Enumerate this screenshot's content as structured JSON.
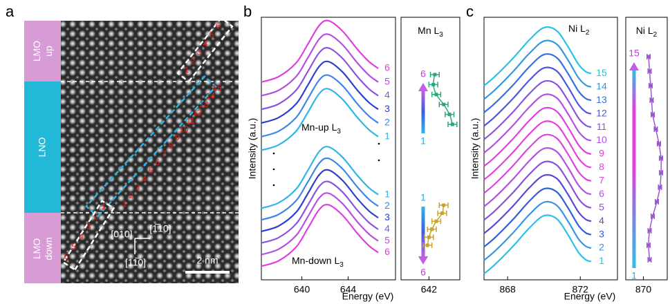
{
  "panel_labels": [
    "a",
    "b",
    "c"
  ],
  "panel_a": {
    "lmo_up": [
      "LMO",
      "up"
    ],
    "lno": "LNO",
    "lmo_down": [
      "LMO",
      "down"
    ],
    "directions": [
      "[010]",
      "[1̅10]",
      "[11̅0]"
    ],
    "scale_bar": "2 nm",
    "up_numbers": [
      "1",
      "2",
      "3",
      "4",
      "5",
      "6"
    ],
    "lno_numbers": [
      "1",
      "2",
      "3",
      "4",
      "5",
      "6",
      "7",
      "8",
      "9",
      "10",
      "11",
      "12",
      "13",
      "14",
      "15"
    ],
    "down_numbers": [
      "1",
      "2",
      "3",
      "4",
      "5",
      "6"
    ]
  },
  "chart_data": [
    {
      "type": "line",
      "ylabel": "Intensity (a.u.)",
      "xlabel": "Energy (eV)",
      "x": [
        636.5,
        638,
        639.5,
        640.5,
        641.5,
        642.3,
        643.5,
        644.8,
        645.8,
        646.6
      ],
      "xlim": [
        636.5,
        646.6
      ],
      "xticks": [
        640,
        644
      ],
      "ylim": [
        0,
        38.5
      ],
      "annotations": [
        {
          "text": "Mn-up L",
          "sub": "3"
        },
        {
          "text": "Mn-down L",
          "sub": "3"
        }
      ],
      "series": [
        {
          "name": "1",
          "color": "#2bb5e8",
          "values": [
            19,
            19.8,
            21.8,
            24.5,
            27.3,
            28,
            26.5,
            23.8,
            22,
            21
          ]
        },
        {
          "name": "2",
          "color": "#3b86e6",
          "values": [
            21,
            21.8,
            23.8,
            26.5,
            29.3,
            30,
            28.5,
            25.8,
            24,
            23
          ]
        },
        {
          "name": "3",
          "color": "#2a3fcf",
          "values": [
            23,
            23.8,
            25.8,
            28.5,
            31.3,
            32,
            30.5,
            27.8,
            26,
            25
          ]
        },
        {
          "name": "4",
          "color": "#8a52e2",
          "values": [
            25,
            25.8,
            27.8,
            30.5,
            33.3,
            34,
            32.5,
            29.8,
            28,
            27
          ]
        },
        {
          "name": "5",
          "color": "#b44fe4",
          "values": [
            27,
            27.8,
            29.8,
            32.5,
            35.3,
            36,
            34.5,
            31.8,
            30,
            29
          ]
        },
        {
          "name": "6",
          "color": "#e03ee0",
          "values": [
            29,
            29.8,
            31.8,
            34.5,
            37.3,
            38,
            36.5,
            33.8,
            32,
            31
          ]
        },
        {
          "name": "1",
          "color": "#2bb5e8",
          "values": [
            10.5,
            11.3,
            13.3,
            16,
            18.8,
            19.5,
            18,
            15.3,
            13.5,
            12.5
          ]
        },
        {
          "name": "2",
          "color": "#3b86e6",
          "values": [
            8.8,
            9.6,
            11.6,
            14.3,
            17.1,
            17.8,
            16.3,
            13.6,
            11.8,
            10.8
          ]
        },
        {
          "name": "3",
          "color": "#2a3fcf",
          "values": [
            7.1,
            7.9,
            9.9,
            12.6,
            15.4,
            16.1,
            14.6,
            11.9,
            10.1,
            9.1
          ]
        },
        {
          "name": "4",
          "color": "#8a52e2",
          "values": [
            5.4,
            6.2,
            8.2,
            10.9,
            13.7,
            14.4,
            12.9,
            10.2,
            8.4,
            7.4
          ]
        },
        {
          "name": "5",
          "color": "#b44fe4",
          "values": [
            3.7,
            4.5,
            6.5,
            9.2,
            12,
            12.7,
            11.2,
            8.5,
            6.7,
            5.7
          ]
        },
        {
          "name": "6",
          "color": "#e03ee0",
          "values": [
            2,
            2.8,
            4.8,
            7.5,
            10.3,
            11,
            9.5,
            6.8,
            5,
            4
          ]
        }
      ]
    },
    {
      "type": "errorbar",
      "title": {
        "text": "Mn L",
        "sub": "3"
      },
      "xlim": [
        640.1,
        644.1
      ],
      "xticks": [
        642
      ],
      "arrow_labels": [
        [
          "6",
          "1"
        ],
        [
          "1",
          "6"
        ]
      ],
      "series": [
        {
          "color": "#2aa876",
          "values": [
            643.6,
            643.4,
            643.0,
            642.5,
            642.3,
            642.4
          ],
          "errors": [
            0.3,
            0.3,
            0.3,
            0.3,
            0.3,
            0.3
          ]
        },
        {
          "color": "#c9a227",
          "values": [
            643.0,
            642.9,
            642.5,
            642.2,
            642.0,
            641.9
          ],
          "errors": [
            0.3,
            0.3,
            0.3,
            0.3,
            0.3,
            0.3
          ]
        }
      ]
    },
    {
      "type": "line",
      "ylabel": "Intensity (a.u.)",
      "xlabel": "Energy (eV)",
      "x": [
        866.7,
        867.3,
        868.3,
        869.2,
        870,
        870.7,
        871.3,
        871.9,
        872.3,
        872.6
      ],
      "xlim": [
        866.7,
        872.6
      ],
      "xticks": [
        868,
        872
      ],
      "ylim": [
        -1,
        42
      ],
      "annotations": [
        {
          "text": "Ni L",
          "sub": "2"
        }
      ],
      "series": [
        {
          "name": "1",
          "color": "#2bc0e8",
          "values": [
            0,
            1.5,
            4.5,
            7.5,
            9.5,
            9,
            6.5,
            3.5,
            2.3,
            2
          ]
        },
        {
          "name": "2",
          "color": "#3596e6",
          "values": [
            2.2,
            3.7,
            6.7,
            9.7,
            11.7,
            11.2,
            8.7,
            5.7,
            4.5,
            4.2
          ]
        },
        {
          "name": "3",
          "color": "#2d5fdc",
          "values": [
            4.4,
            5.9,
            8.9,
            11.9,
            13.9,
            13.4,
            10.9,
            7.9,
            6.7,
            6.4
          ]
        },
        {
          "name": "4",
          "color": "#5a48d8",
          "values": [
            6.6,
            8.1,
            11.1,
            14.1,
            16.1,
            15.6,
            13.1,
            10.1,
            8.9,
            8.6
          ]
        },
        {
          "name": "5",
          "color": "#8a4ee0",
          "values": [
            8.8,
            10.3,
            13.3,
            16.3,
            18.3,
            17.8,
            15.3,
            12.3,
            11.1,
            10.8
          ]
        },
        {
          "name": "6",
          "color": "#b64ee4",
          "values": [
            11,
            12.5,
            15.5,
            18.5,
            20.5,
            20,
            17.5,
            14.5,
            13.3,
            13
          ]
        },
        {
          "name": "7",
          "color": "#d844e2",
          "values": [
            13.2,
            14.7,
            17.7,
            20.7,
            22.7,
            22.2,
            19.7,
            16.7,
            15.5,
            15.2
          ]
        },
        {
          "name": "8",
          "color": "#e83ee0",
          "values": [
            15.4,
            16.9,
            19.9,
            22.9,
            24.9,
            24.4,
            21.9,
            18.9,
            17.7,
            17.4
          ]
        },
        {
          "name": "9",
          "color": "#e03ee0",
          "values": [
            17.6,
            19.1,
            22.1,
            25.1,
            27.1,
            26.6,
            24.1,
            21.1,
            19.9,
            19.6
          ]
        },
        {
          "name": "10",
          "color": "#b44fe4",
          "values": [
            19.8,
            21.3,
            24.3,
            27.3,
            29.3,
            28.8,
            26.3,
            23.3,
            22.1,
            21.8
          ]
        },
        {
          "name": "11",
          "color": "#8a52e2",
          "values": [
            22,
            23.5,
            26.5,
            29.5,
            31.5,
            31,
            28.5,
            25.5,
            24.3,
            24
          ]
        },
        {
          "name": "12",
          "color": "#4d56dc",
          "values": [
            24.2,
            25.7,
            28.7,
            31.7,
            33.7,
            33.2,
            30.7,
            27.7,
            26.5,
            26.2
          ]
        },
        {
          "name": "13",
          "color": "#3470e0",
          "values": [
            26.4,
            27.9,
            30.9,
            33.9,
            35.9,
            35.4,
            32.9,
            29.9,
            28.7,
            28.4
          ]
        },
        {
          "name": "14",
          "color": "#3198e6",
          "values": [
            28.6,
            30.1,
            33.1,
            36.1,
            38.1,
            37.6,
            35.1,
            32.1,
            30.9,
            30.6
          ]
        },
        {
          "name": "15",
          "color": "#2bc0e8",
          "values": [
            30.8,
            32.3,
            35.3,
            38.3,
            40.3,
            39.8,
            37.3,
            34.3,
            33.1,
            32.8
          ]
        }
      ]
    },
    {
      "type": "errorbar",
      "title": {
        "text": "Ni L",
        "sub": "2"
      },
      "xlim": [
        868.3,
        872.3
      ],
      "xticks": [
        870
      ],
      "arrow_labels": [
        [
          "15",
          "1"
        ]
      ],
      "series": [
        {
          "color": "#9b59d0",
          "values": [
            870.6,
            870.5,
            870.6,
            870.9,
            871.3,
            871.6,
            871.7,
            871.7,
            871.5,
            871.2,
            870.9,
            870.8,
            870.7,
            870.6,
            870.5
          ],
          "errors": [
            0.15,
            0.15,
            0.15,
            0.15,
            0.15,
            0.15,
            0.15,
            0.15,
            0.15,
            0.15,
            0.15,
            0.15,
            0.15,
            0.15,
            0.15
          ]
        }
      ]
    }
  ]
}
